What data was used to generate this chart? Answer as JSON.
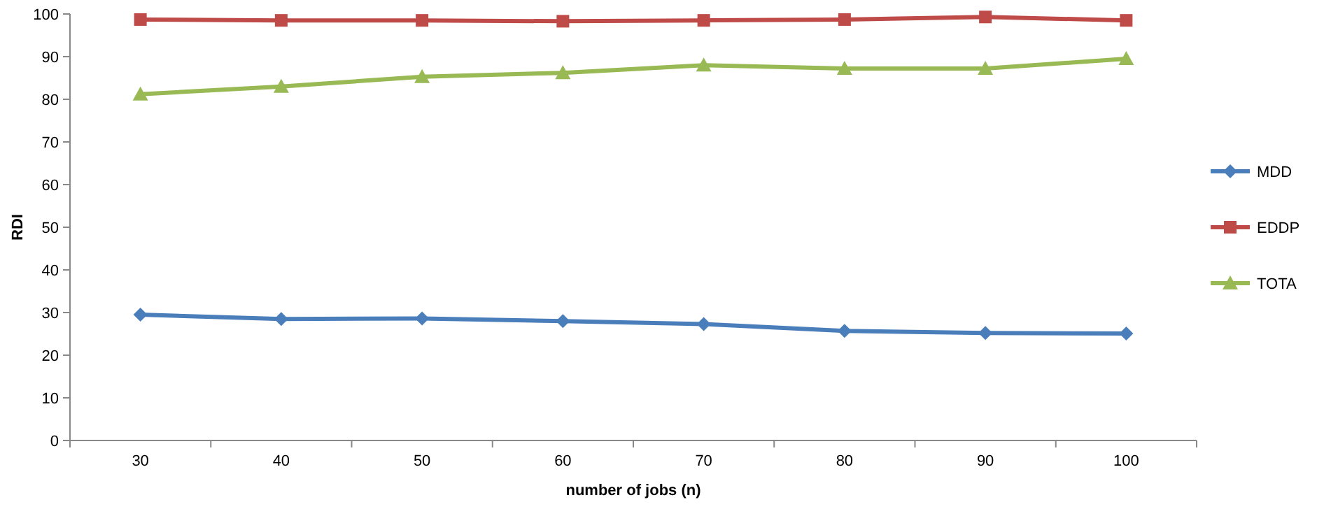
{
  "chart_data": {
    "type": "line",
    "xlabel": "number of jobs (n)",
    "ylabel": "RDI",
    "categories": [
      "30",
      "40",
      "50",
      "60",
      "70",
      "80",
      "90",
      "100"
    ],
    "ylim": [
      0,
      100
    ],
    "yticks": [
      0,
      10,
      20,
      30,
      40,
      50,
      60,
      70,
      80,
      90,
      100
    ],
    "grid": false,
    "legend": "right",
    "series": [
      {
        "name": "MDD",
        "color": "#4a7ebb",
        "marker": "diamond",
        "values": [
          29.5,
          28.5,
          28.6,
          28,
          27.3,
          25.7,
          25.2,
          25.1
        ]
      },
      {
        "name": "EDDP",
        "color": "#be4b48",
        "marker": "square",
        "values": [
          98.7,
          98.5,
          98.5,
          98.3,
          98.5,
          98.7,
          99.3,
          98.5
        ]
      },
      {
        "name": "TOTA",
        "color": "#98b954",
        "marker": "triangle",
        "values": [
          81.2,
          83,
          85.3,
          86.2,
          88,
          87.2,
          87.2,
          89.5
        ]
      }
    ]
  }
}
